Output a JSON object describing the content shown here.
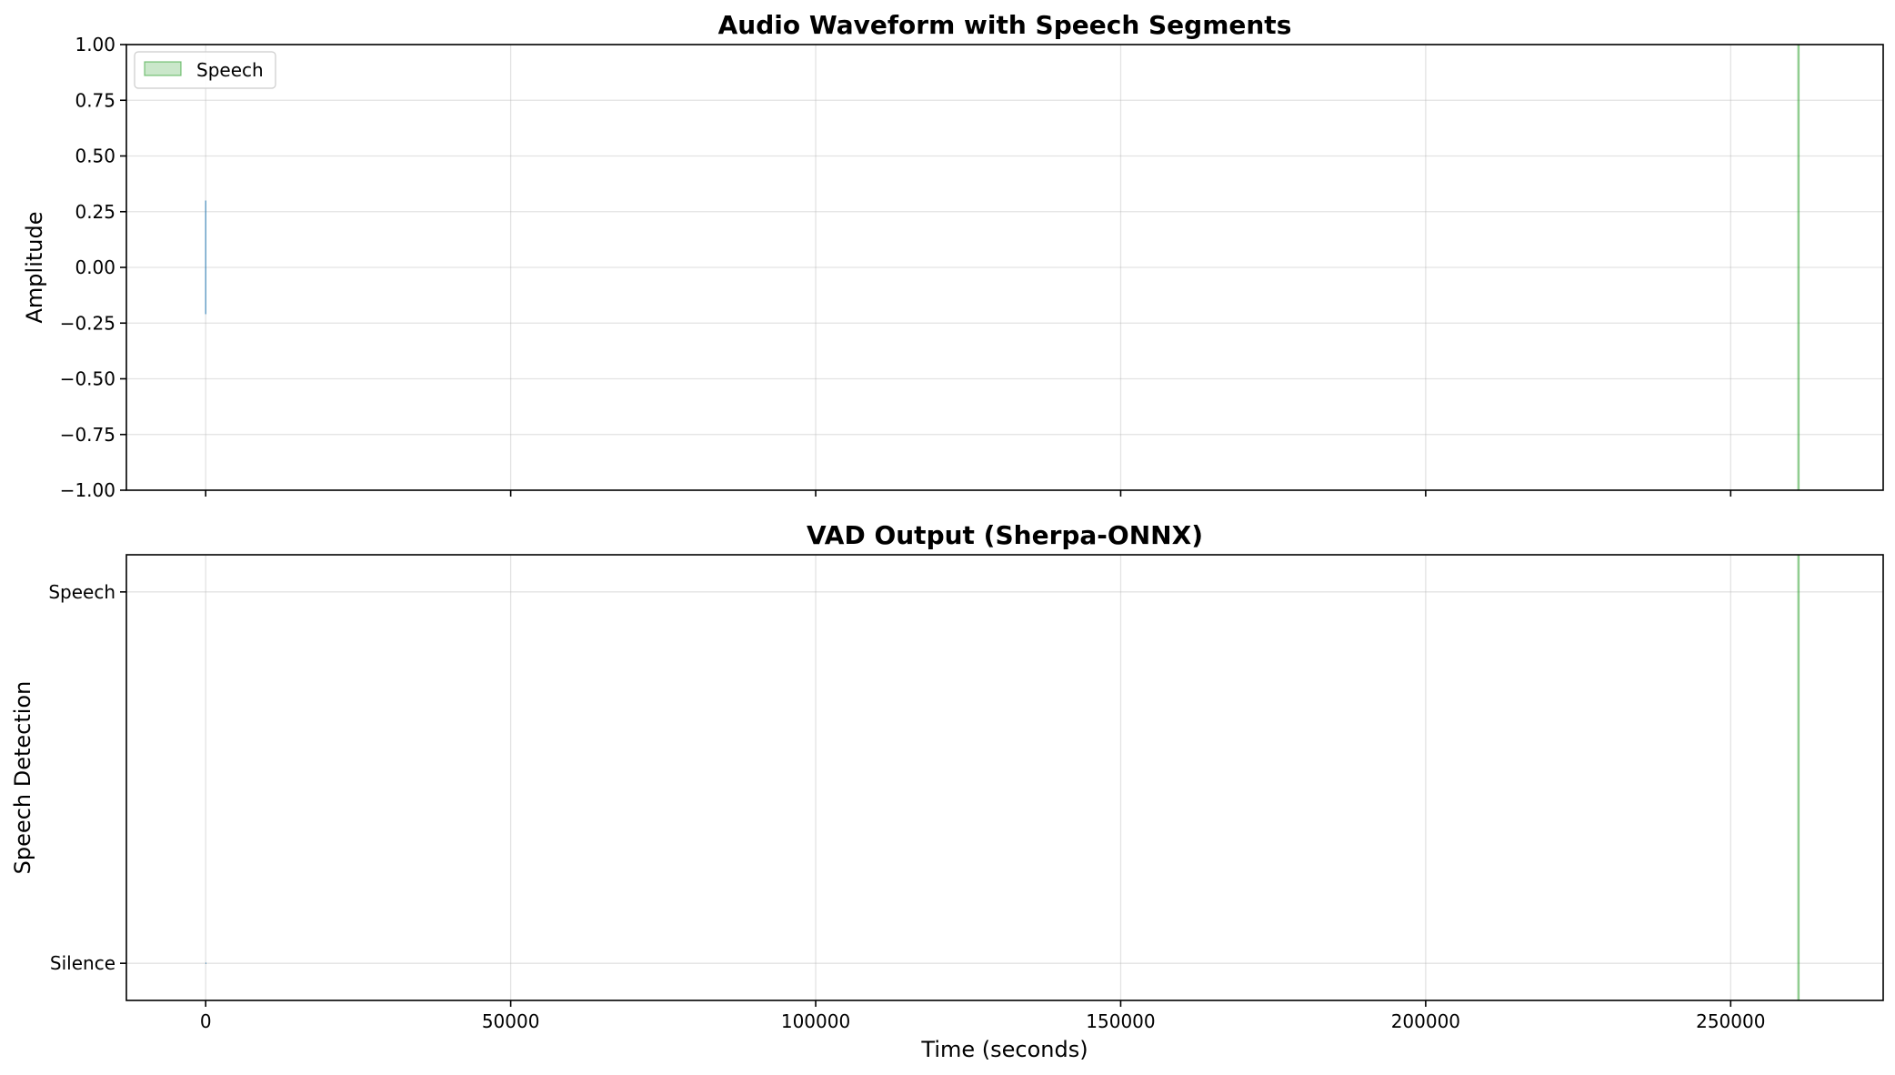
{
  "chart_data": [
    {
      "type": "line",
      "title": "Audio Waveform with Speech Segments",
      "xlabel": "",
      "ylabel": "Amplitude",
      "xlim": [
        -13000,
        275000
      ],
      "ylim": [
        -1.0,
        1.0
      ],
      "x_ticks": [
        0,
        50000,
        100000,
        150000,
        200000,
        250000
      ],
      "y_ticks": [
        1.0,
        0.75,
        0.5,
        0.25,
        0.0,
        -0.25,
        -0.5,
        -0.75,
        -1.0
      ],
      "y_tick_labels": [
        "1.00",
        "0.75",
        "0.50",
        "0.25",
        "0.00",
        "−0.25",
        "−0.50",
        "−0.75",
        "−1.00"
      ],
      "grid": true,
      "legend": {
        "placement": "upper-left",
        "entries": [
          {
            "label": "Speech",
            "color": "#2ca02c"
          }
        ]
      },
      "waveform": {
        "color": "#1f77b4",
        "x": [
          0,
          0,
          0
        ],
        "y": [
          0.3,
          0.0,
          -0.21
        ]
      },
      "speech_segments": [
        {
          "start": 261000,
          "end": 261200,
          "color": "#2ca02c"
        }
      ]
    },
    {
      "type": "line",
      "title": "VAD Output (Sherpa-ONNX)",
      "xlabel": "Time (seconds)",
      "ylabel": "Speech Detection",
      "xlim": [
        -13000,
        275000
      ],
      "ylim": [
        -0.1,
        1.1
      ],
      "x_ticks": [
        0,
        50000,
        100000,
        150000,
        200000,
        250000
      ],
      "x_tick_labels": [
        "0",
        "50000",
        "100000",
        "150000",
        "200000",
        "250000"
      ],
      "y_ticks": [
        1,
        0
      ],
      "y_tick_labels": [
        "Speech",
        "Silence"
      ],
      "grid": true,
      "vad_line": {
        "color": "#1f77b4",
        "x": [
          0,
          100
        ],
        "y": [
          0,
          0
        ]
      },
      "speech_segments": [
        {
          "start": 261000,
          "end": 261200,
          "color": "#2ca02c"
        }
      ]
    }
  ]
}
